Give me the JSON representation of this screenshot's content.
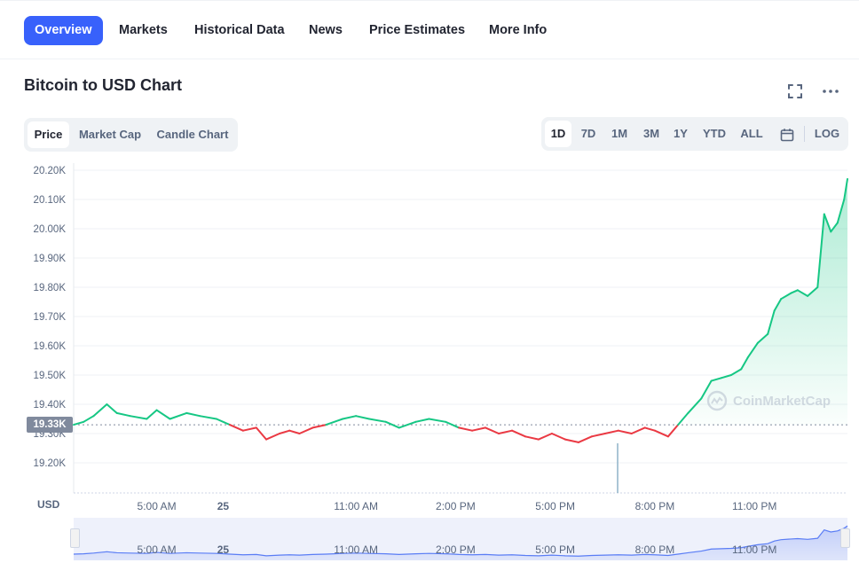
{
  "nav": {
    "tabs": [
      {
        "label": "Overview",
        "active": true
      },
      {
        "label": "Markets"
      },
      {
        "label": "Historical Data"
      },
      {
        "label": "News"
      },
      {
        "label": "Price Estimates"
      },
      {
        "label": "More Info"
      }
    ]
  },
  "page": {
    "title": "Bitcoin to USD Chart"
  },
  "chart_types": {
    "items": [
      "Price",
      "Market Cap",
      "Candle Chart"
    ],
    "active": "Price"
  },
  "ranges": {
    "items": [
      "1D",
      "7D",
      "1M",
      "3M",
      "1Y",
      "YTD",
      "ALL"
    ],
    "active": "1D",
    "log_label": "LOG"
  },
  "icons": {
    "fullscreen": "fullscreen-icon",
    "more": "more-horizontal-icon",
    "calendar": "calendar-icon",
    "watermark": "coinmarketcap-logo-icon"
  },
  "colors": {
    "accent": "#3861fb",
    "up": "#16c784",
    "down": "#ea3943",
    "text": "#222531",
    "muted": "#58667e"
  },
  "watermark": "CoinMarketCap",
  "currency_label": "USD",
  "chart_data": {
    "type": "line",
    "y_tick_labels": [
      "20.20K",
      "20.10K",
      "20.00K",
      "19.90K",
      "19.80K",
      "19.70K",
      "19.60K",
      "19.50K",
      "19.40K",
      "19.30K",
      "19.20K"
    ],
    "y_ticks": [
      20200,
      20100,
      20000,
      19900,
      19800,
      19700,
      19600,
      19500,
      19400,
      19300,
      19200
    ],
    "ylim": [
      19100,
      20200
    ],
    "x_tick_labels": [
      "5:00 AM",
      "25",
      "11:00 AM",
      "2:00 PM",
      "5:00 PM",
      "8:00 PM",
      "11:00 PM"
    ],
    "x_ticks": [
      5,
      7,
      11,
      14,
      17,
      20,
      23
    ],
    "xlim": [
      2.5,
      25.8
    ],
    "baseline": 19330,
    "baseline_label": "19.33K",
    "series": [
      {
        "x": [
          2.5,
          2.8,
          3.1,
          3.5,
          3.8,
          4.2,
          4.7,
          5.0,
          5.4,
          5.9,
          6.3,
          6.8,
          7.2,
          7.6,
          8.0,
          8.3,
          8.7,
          9.0,
          9.3,
          9.7,
          10.1,
          10.6,
          11.0,
          11.4,
          11.9,
          12.3,
          12.8,
          13.2,
          13.7,
          14.1,
          14.5,
          14.9,
          15.3,
          15.7,
          16.1,
          16.5,
          16.9,
          17.3,
          17.7,
          18.1,
          18.5,
          18.9,
          19.3,
          19.7,
          20.0,
          20.4,
          20.7,
          21.0,
          21.4,
          21.7,
          22.0,
          22.3,
          22.6,
          22.8,
          23.1,
          23.4,
          23.6,
          23.8,
          24.1,
          24.3,
          24.6,
          24.9,
          25.1,
          25.3,
          25.5,
          25.7,
          25.8
        ],
        "y": [
          19330,
          19340,
          19360,
          19400,
          19370,
          19360,
          19350,
          19380,
          19350,
          19370,
          19360,
          19350,
          19330,
          19310,
          19320,
          19280,
          19300,
          19310,
          19300,
          19320,
          19330,
          19350,
          19360,
          19350,
          19340,
          19320,
          19340,
          19350,
          19340,
          19320,
          19310,
          19320,
          19300,
          19310,
          19290,
          19280,
          19300,
          19280,
          19270,
          19290,
          19300,
          19310,
          19300,
          19320,
          19310,
          19290,
          19330,
          19370,
          19420,
          19480,
          19490,
          19500,
          19520,
          19560,
          19610,
          19640,
          19720,
          19760,
          19780,
          19790,
          19770,
          19800,
          20050,
          19990,
          20020,
          20100,
          20170
        ]
      }
    ],
    "navigator": {
      "x_tick_labels": [
        "5:00 AM",
        "25",
        "11:00 AM",
        "2:00 PM",
        "5:00 PM",
        "8:00 PM",
        "11:00 PM"
      ]
    }
  }
}
